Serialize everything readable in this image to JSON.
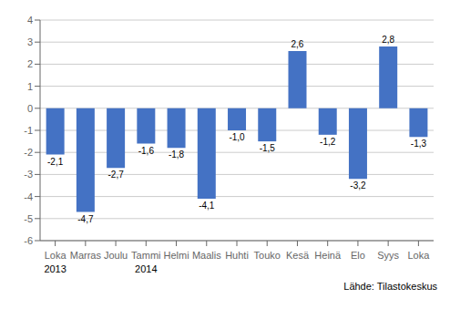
{
  "chart_data": {
    "type": "bar",
    "categories": [
      "Loka",
      "Marras",
      "Joulu",
      "Tammi",
      "Helmi",
      "Maalis",
      "Huhti",
      "Touko",
      "Kesä",
      "Heinä",
      "Elo",
      "Syys",
      "Loka"
    ],
    "values": [
      -2.1,
      -4.7,
      -2.7,
      -1.6,
      -1.8,
      -4.1,
      -1.0,
      -1.5,
      2.6,
      -1.2,
      -3.2,
      2.8,
      -1.3
    ],
    "value_labels": [
      "-2,1",
      "-4,7",
      "-2,7",
      "-1,6",
      "-1,8",
      "-4,1",
      "-1,0",
      "-1,5",
      "2,6",
      "-1,2",
      "-3,2",
      "2,8",
      "-1,3"
    ],
    "data_labels": true,
    "color": "#4472c4",
    "ylim": [
      -6,
      4
    ],
    "yticks": [
      -6,
      -5,
      -4,
      -3,
      -2,
      -1,
      0,
      1,
      2,
      3,
      4
    ],
    "grid": true,
    "annotations": [
      {
        "text": "2013",
        "index": 0
      },
      {
        "text": "2014",
        "index": 3
      }
    ],
    "source": "Lähde: Tilastokeskus"
  }
}
